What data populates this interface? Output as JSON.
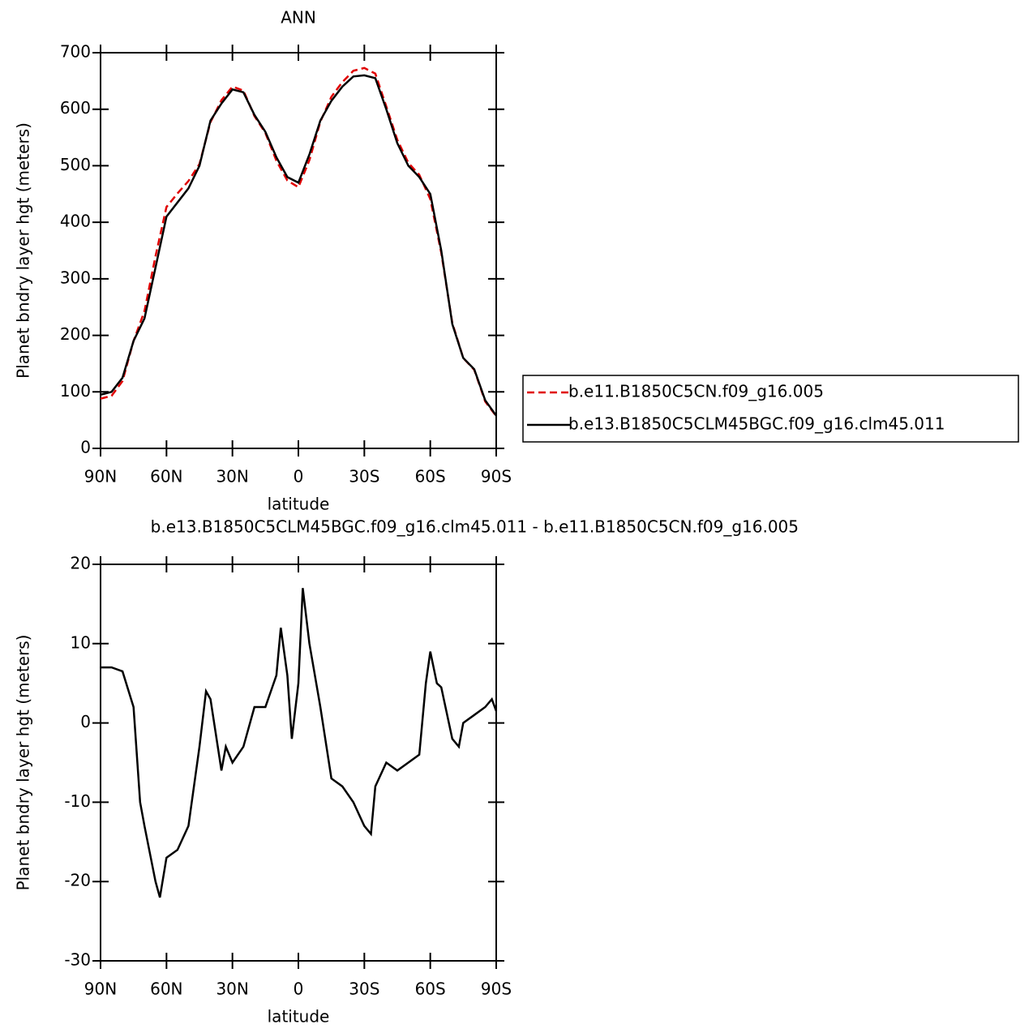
{
  "chart_data": [
    {
      "type": "line",
      "title": "ANN",
      "xlabel": "latitude",
      "ylabel": "Planet bndry layer hgt (meters)",
      "x": [
        90,
        85,
        80,
        75,
        70,
        65,
        60,
        55,
        50,
        45,
        40,
        35,
        30,
        25,
        20,
        15,
        10,
        5,
        0,
        -5,
        -10,
        -15,
        -20,
        -25,
        -30,
        -35,
        -40,
        -45,
        -50,
        -55,
        -60,
        -65,
        -70,
        -75,
        -80,
        -85,
        -90
      ],
      "xlim": [
        90,
        -90
      ],
      "xticks": [
        {
          "value": 90,
          "label": "90N"
        },
        {
          "value": 60,
          "label": "60N"
        },
        {
          "value": 30,
          "label": "30N"
        },
        0,
        {
          "value": -30,
          "label": "30S"
        },
        {
          "value": -60,
          "label": "60S"
        },
        {
          "value": -90,
          "label": "90S"
        }
      ],
      "ylim": [
        0,
        700
      ],
      "yticks": [
        0,
        100,
        200,
        300,
        400,
        500,
        600,
        700
      ],
      "legend": "right",
      "series": [
        {
          "name": "b.e11.B1850C5CN.f09_g16.005",
          "color": "#e00000",
          "dash": true,
          "values": [
            88,
            93,
            119,
            190,
            243,
            340,
            427,
            451,
            473,
            503,
            577,
            616,
            640,
            633,
            588,
            558,
            509,
            474,
            462,
            510,
            578,
            622,
            648,
            668,
            673,
            663,
            605,
            546,
            505,
            484,
            441,
            346,
            222,
            160,
            139,
            83,
            57
          ]
        },
        {
          "name": "b.e13.B1850C5CLM45BGC.f09_g16.clm45.011",
          "color": "#000000",
          "dash": false,
          "values": [
            95,
            100,
            125,
            190,
            230,
            320,
            410,
            435,
            460,
            500,
            580,
            610,
            635,
            630,
            590,
            560,
            515,
            480,
            470,
            520,
            580,
            615,
            640,
            658,
            660,
            655,
            600,
            540,
            500,
            480,
            450,
            350,
            220,
            160,
            140,
            85,
            58
          ]
        }
      ]
    },
    {
      "type": "line",
      "title": "b.e13.B1850C5CLM45BGC.f09_g16.clm45.011 - b.e11.B1850C5CN.f09_g16.005",
      "xlabel": "latitude",
      "ylabel": "Planet bndry layer hgt (meters)",
      "x": [
        90,
        85,
        80,
        75,
        72,
        70,
        65,
        63,
        60,
        55,
        50,
        45,
        42,
        40,
        35,
        33,
        30,
        25,
        20,
        15,
        10,
        8,
        5,
        3,
        0,
        -2,
        -5,
        -10,
        -15,
        -20,
        -25,
        -30,
        -33,
        -35,
        -40,
        -45,
        -50,
        -55,
        -58,
        -60,
        -63,
        -65,
        -70,
        -73,
        -75,
        -80,
        -85,
        -88,
        -90
      ],
      "xlim": [
        90,
        -90
      ],
      "xticks": [
        {
          "value": 90,
          "label": "90N"
        },
        {
          "value": 60,
          "label": "60N"
        },
        {
          "value": 30,
          "label": "30N"
        },
        0,
        {
          "value": -30,
          "label": "30S"
        },
        {
          "value": -60,
          "label": "60S"
        },
        {
          "value": -90,
          "label": "90S"
        }
      ],
      "ylim": [
        -30,
        20
      ],
      "yticks": [
        -30,
        -20,
        -10,
        0,
        10,
        20
      ],
      "series": [
        {
          "color": "#000000",
          "dash": false,
          "values": [
            7,
            7,
            6.5,
            2,
            -10,
            -13,
            -20,
            -22,
            -17,
            -16,
            -13,
            -3,
            4,
            3,
            -6,
            -3,
            -5,
            -3,
            2,
            2,
            6,
            12,
            6,
            -2,
            5,
            17,
            10,
            2,
            -7,
            -8,
            -10,
            -13,
            -14,
            -8,
            -5,
            -6,
            -5,
            -4,
            5,
            9,
            5,
            4.5,
            -2,
            -3,
            0,
            1,
            2,
            3,
            1.5
          ]
        }
      ]
    }
  ]
}
